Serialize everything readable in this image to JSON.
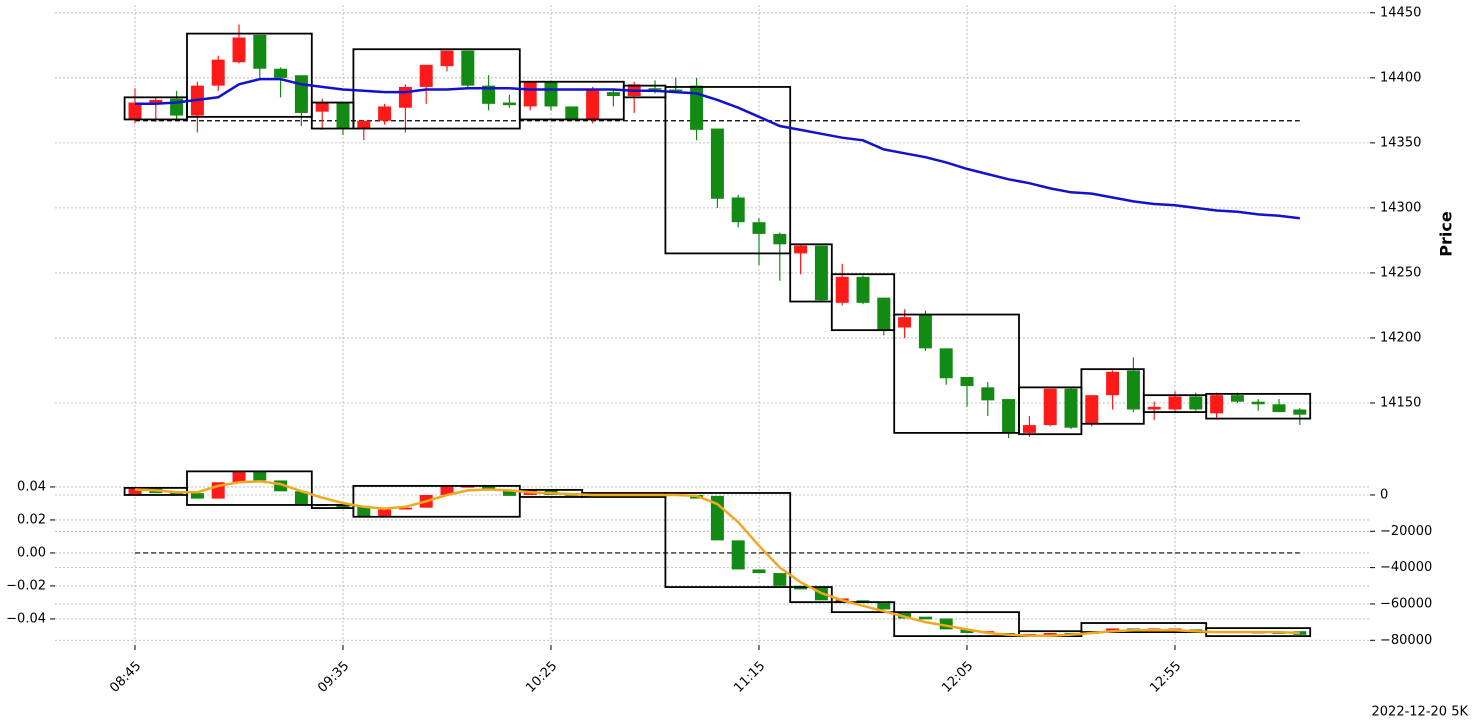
{
  "chart_data": [
    {
      "type": "candlestick",
      "categories": [
        "08:45",
        null,
        null,
        null,
        null,
        null,
        null,
        null,
        null,
        null,
        "09:35",
        null,
        null,
        null,
        null,
        null,
        null,
        null,
        null,
        null,
        "10:25",
        null,
        null,
        null,
        null,
        null,
        null,
        null,
        null,
        null,
        "11:15",
        null,
        null,
        null,
        null,
        null,
        null,
        null,
        null,
        null,
        "12:05",
        null,
        null,
        null,
        null,
        null,
        null,
        null,
        null,
        null,
        "12:55",
        null,
        null,
        null,
        null,
        null,
        null
      ],
      "open": [
        14368,
        14380,
        14384,
        14371,
        14394,
        14412,
        14433,
        14407,
        14402,
        14374,
        14381,
        14361,
        14367,
        14377,
        14393,
        14409,
        14421,
        14394,
        14381,
        14378,
        14397,
        14378,
        14368,
        14389,
        14386,
        14392,
        14391,
        14394,
        14361,
        14308,
        14289,
        14280,
        14265,
        14271,
        14227,
        14247,
        14231,
        14208,
        14218,
        14192,
        14170,
        14162,
        14153,
        14127,
        14133,
        14161,
        14134,
        14156,
        14175,
        14145,
        14145,
        14155,
        14142,
        14156,
        14151,
        14149,
        14145
      ],
      "high": [
        14392,
        14385,
        14390,
        14397,
        14417,
        14441,
        14433,
        14408,
        14401,
        14384,
        14381,
        14367,
        14380,
        14395,
        14410,
        14421,
        14421,
        14402,
        14387,
        14397,
        14398,
        14378,
        14393,
        14391,
        14397,
        14398,
        14400,
        14400,
        14361,
        14310,
        14292,
        14281,
        14272,
        14271,
        14257,
        14248,
        14231,
        14222,
        14221,
        14192,
        14170,
        14166,
        14153,
        14140,
        14161,
        14162,
        14156,
        14175,
        14185,
        14151,
        14159,
        14158,
        14158,
        14158,
        14153,
        14153,
        14146
      ],
      "low": [
        14365,
        14366,
        14368,
        14358,
        14390,
        14411,
        14400,
        14385,
        14363,
        14360,
        14356,
        14352,
        14364,
        14358,
        14380,
        14405,
        14392,
        14375,
        14377,
        14375,
        14375,
        14367,
        14365,
        14378,
        14373,
        14388,
        14388,
        14352,
        14300,
        14285,
        14256,
        14244,
        14249,
        14228,
        14225,
        14226,
        14202,
        14200,
        14190,
        14164,
        14147,
        14140,
        14123,
        14124,
        14132,
        14130,
        14132,
        14145,
        14143,
        14137,
        14143,
        14144,
        14137,
        14150,
        14144,
        14143,
        14133
      ],
      "close": [
        14381,
        14383,
        14371,
        14394,
        14414,
        14431,
        14407,
        14400,
        14373,
        14381,
        14361,
        14367,
        14378,
        14393,
        14410,
        14421,
        14394,
        14380,
        14379,
        14397,
        14378,
        14368,
        14391,
        14386,
        14395,
        14391,
        14390,
        14360,
        14307,
        14289,
        14280,
        14272,
        14271,
        14229,
        14247,
        14227,
        14206,
        14216,
        14192,
        14169,
        14163,
        14152,
        14127,
        14133,
        14161,
        14131,
        14156,
        14174,
        14145,
        14147,
        14155,
        14145,
        14156,
        14151,
        14149,
        14143,
        14141
      ],
      "up_color": "#ff1a1a",
      "down_color": "#138a13",
      "ylim": [
        14110,
        14456
      ],
      "yticks": [
        14150,
        14200,
        14250,
        14300,
        14350,
        14400,
        14450
      ],
      "yaxis_side": "right",
      "ylabel": "Price",
      "grid": true,
      "lines": [
        {
          "color": "#1212cc",
          "values": [
            14380,
            14380,
            14381,
            14383,
            14385,
            14395,
            14399,
            14399,
            14395,
            14393,
            14391,
            14390,
            14389,
            14389,
            14391,
            14391,
            14392,
            14392,
            14392,
            14391,
            14391,
            14391,
            14391,
            14391,
            14390,
            14390,
            14389,
            14388,
            14383,
            14377,
            14370,
            14363,
            14360,
            14357,
            14354,
            14352,
            14345,
            14342,
            14339,
            14335,
            14330,
            14326,
            14322,
            14319,
            14315,
            14312,
            14311,
            14308,
            14305,
            14303,
            14302,
            14300,
            14298,
            14297,
            14295,
            14294,
            14292
          ]
        }
      ],
      "hlines": [
        14367
      ],
      "boxes": [
        {
          "from": 0,
          "to": 2,
          "high": 14385,
          "low": 14368
        },
        {
          "from": 3,
          "to": 8,
          "high": 14434,
          "low": 14370
        },
        {
          "from": 9,
          "to": 10,
          "high": 14381,
          "low": 14361
        },
        {
          "from": 11,
          "to": 18,
          "high": 14422,
          "low": 14361
        },
        {
          "from": 19,
          "to": 23,
          "high": 14397,
          "low": 14368
        },
        {
          "from": 24,
          "to": 25,
          "high": 14394,
          "low": 14385
        },
        {
          "from": 26,
          "to": 31,
          "high": 14393,
          "low": 14265
        },
        {
          "from": 32,
          "to": 33,
          "high": 14272,
          "low": 14228
        },
        {
          "from": 34,
          "to": 36,
          "high": 14249,
          "low": 14206
        },
        {
          "from": 37,
          "to": 42,
          "high": 14218,
          "low": 14127
        },
        {
          "from": 43,
          "to": 45,
          "high": 14162,
          "low": 14126
        },
        {
          "from": 46,
          "to": 48,
          "high": 14176,
          "low": 14134
        },
        {
          "from": 49,
          "to": 51,
          "high": 14156,
          "low": 14143
        },
        {
          "from": 52,
          "to": 56,
          "high": 14157,
          "low": 14138
        }
      ]
    },
    {
      "type": "candlestick",
      "open": [
        0,
        3500,
        1500,
        1000,
        -2000,
        7000,
        13000,
        8000,
        2000,
        -6000,
        -5000,
        -6000,
        -12000,
        -8000,
        -7000,
        0,
        4000,
        5000,
        3000,
        0,
        2500,
        1000,
        -500,
        500,
        0,
        500,
        500,
        0,
        -500,
        -25000,
        -41000,
        -43000,
        -50000,
        -51000,
        -59000,
        -58000,
        -59000,
        -65000,
        -67000,
        -68000,
        -74000,
        -76000,
        -76000,
        -77000,
        -77000,
        -76000,
        -76500,
        -75000,
        -73500,
        -74000,
        -74500,
        -74000,
        -76000,
        -75000,
        -75500,
        -75500,
        -75000
      ],
      "close": [
        3500,
        1000,
        500,
        -2000,
        7000,
        13000,
        8000,
        2000,
        -5500,
        -5000,
        -7000,
        -12000,
        -8000,
        -7000,
        0,
        5000,
        5000,
        3000,
        -500,
        2500,
        0,
        -500,
        500,
        0,
        500,
        0,
        0,
        -2000,
        -25000,
        -41000,
        -43000,
        -50000,
        -52000,
        -58000,
        -57000,
        -59500,
        -63000,
        -68000,
        -68500,
        -74000,
        -76000,
        -75000,
        -77000,
        -76500,
        -76000,
        -77000,
        -75000,
        -73500,
        -74500,
        -73500,
        -73500,
        -75000,
        -75000,
        -75500,
        -76000,
        -76500,
        -77000
      ],
      "up_color": "#ff1a1a",
      "down_color": "#138a13",
      "ohlc_axis": "y2",
      "ylim": [
        -0.0558,
        0.0533
      ],
      "yticks": [
        {
          "value": -0.04,
          "label": "−0.04"
        },
        {
          "value": -0.02,
          "label": "−0.02"
        },
        {
          "value": 0,
          "label": "0.00"
        },
        0.02,
        0.04
      ],
      "y2lim": [
        -82600,
        16500
      ],
      "y2ticks": [
        {
          "value": -80000,
          "label": "−80000"
        },
        {
          "value": -60000,
          "label": "−60000"
        },
        {
          "value": -40000,
          "label": "−40000"
        },
        {
          "value": -20000,
          "label": "−20000"
        },
        0
      ],
      "grid": true,
      "lines": [
        {
          "color": "#f0a820",
          "axis": "y2",
          "values": [
            3000,
            2500,
            1500,
            1500,
            5000,
            7000,
            7500,
            6000,
            2000,
            -1500,
            -4500,
            -6500,
            -7500,
            -6500,
            -3500,
            0,
            2500,
            3000,
            2500,
            1500,
            1000,
            500,
            0,
            0,
            0,
            0,
            0,
            -500,
            -5000,
            -15000,
            -28000,
            -40000,
            -48000,
            -54000,
            -58000,
            -61000,
            -64000,
            -67000,
            -70000,
            -72000,
            -74000,
            -76000,
            -77000,
            -77500,
            -77500,
            -77000,
            -76000,
            -75000,
            -74500,
            -74500,
            -74500,
            -75000,
            -75500,
            -75500,
            -75500,
            -75500,
            -76000
          ]
        }
      ],
      "hlines": [
        0
      ],
      "boxes_axis": "y2",
      "boxes": [
        {
          "from": 0,
          "to": 2,
          "high": 3900,
          "low": 0
        },
        {
          "from": 3,
          "to": 8,
          "high": 13000,
          "low": -5500
        },
        {
          "from": 9,
          "to": 10,
          "high": -5500,
          "low": -7200
        },
        {
          "from": 11,
          "to": 18,
          "high": 5000,
          "low": -12000
        },
        {
          "from": 19,
          "to": 21,
          "high": 2800,
          "low": -1100
        },
        {
          "from": 22,
          "to": 25,
          "high": 1100,
          "low": -1100
        },
        {
          "from": 26,
          "to": 31,
          "high": 1100,
          "low": -50700
        },
        {
          "from": 32,
          "to": 33,
          "high": -50700,
          "low": -59000
        },
        {
          "from": 34,
          "to": 36,
          "high": -59000,
          "low": -64500
        },
        {
          "from": 37,
          "to": 42,
          "high": -64500,
          "low": -77700
        },
        {
          "from": 43,
          "to": 45,
          "high": -75000,
          "low": -77700
        },
        {
          "from": 46,
          "to": 51,
          "high": -70500,
          "low": -75500
        },
        {
          "from": 52,
          "to": 56,
          "high": -73300,
          "low": -77700
        }
      ]
    }
  ],
  "footer": "2022-12-20 5K"
}
